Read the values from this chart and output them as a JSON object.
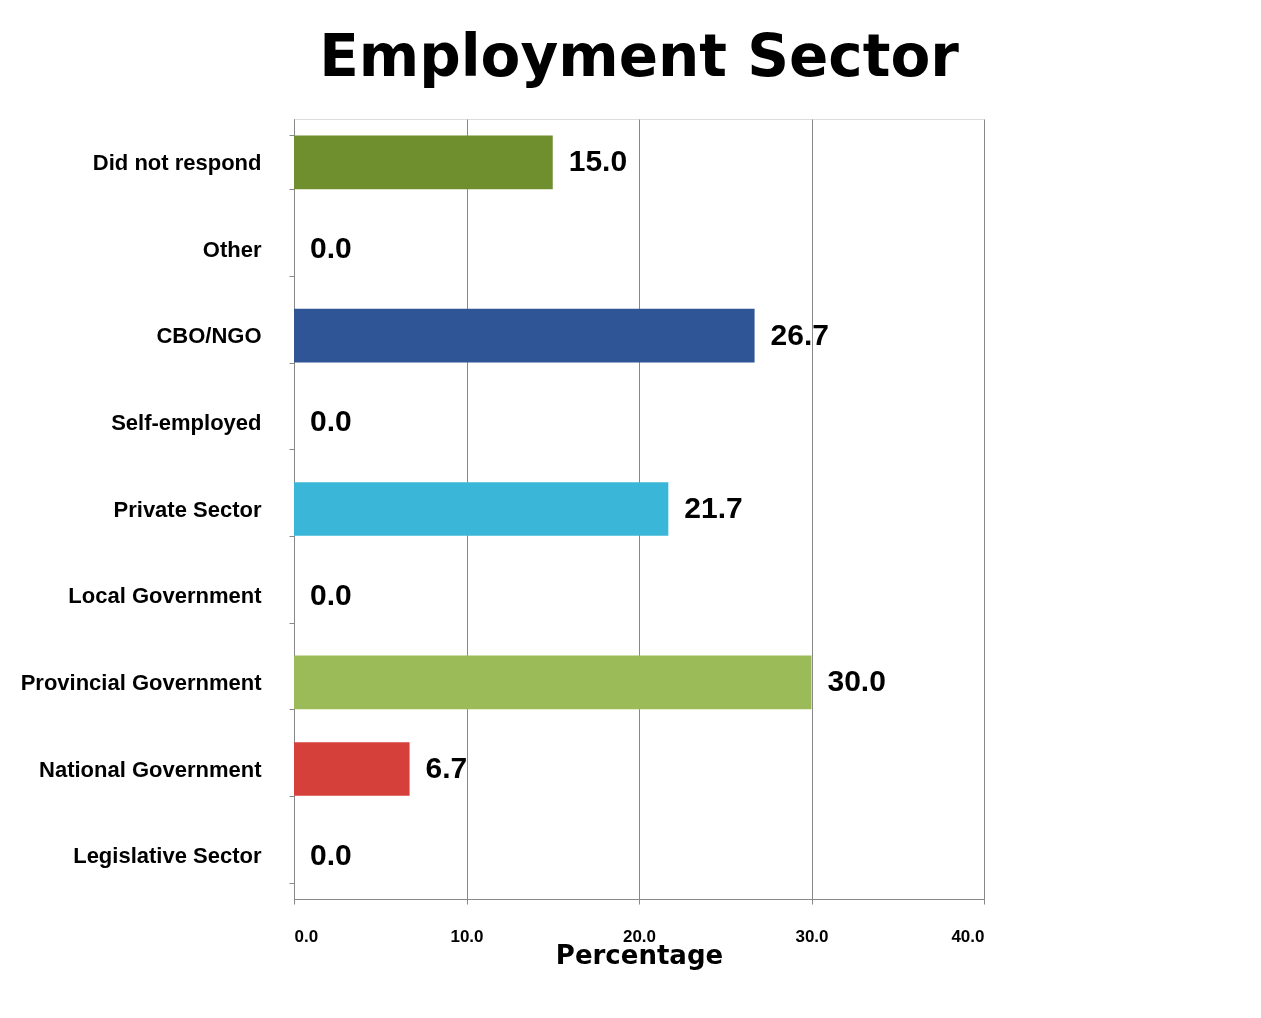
{
  "chart_data": {
    "type": "bar",
    "orientation": "horizontal",
    "title": "Employment Sector",
    "xlabel": "Percentage",
    "categories": [
      "Did not respond",
      "Other",
      "CBO/NGO",
      "Self-employed",
      "Private Sector",
      "Local Government",
      "Provincial Government",
      "National Government",
      "Legislative Sector"
    ],
    "values": [
      15.0,
      0.0,
      26.7,
      0.0,
      21.7,
      0.0,
      30.0,
      6.7,
      0.0
    ],
    "value_labels": [
      "15.0",
      "0.0",
      "26.7",
      "0.0",
      "21.7",
      "0.0",
      "30.0",
      "6.7",
      "0.0"
    ],
    "colors": [
      "#6f8f2f",
      "#6f8f2f",
      "#2f5597",
      "#2f5597",
      "#3ab7d8",
      "#3ab7d8",
      "#9bbb59",
      "#d6403a",
      "#d6403a"
    ],
    "xlim": [
      0,
      40
    ],
    "xticks": [
      {
        "value": 0,
        "label": "0.0"
      },
      {
        "value": 10,
        "label": "10.0"
      },
      {
        "value": 20,
        "label": "20.0"
      },
      {
        "value": 30,
        "label": "30.0"
      },
      {
        "value": 40,
        "label": "40.0"
      }
    ],
    "grid": "x"
  }
}
